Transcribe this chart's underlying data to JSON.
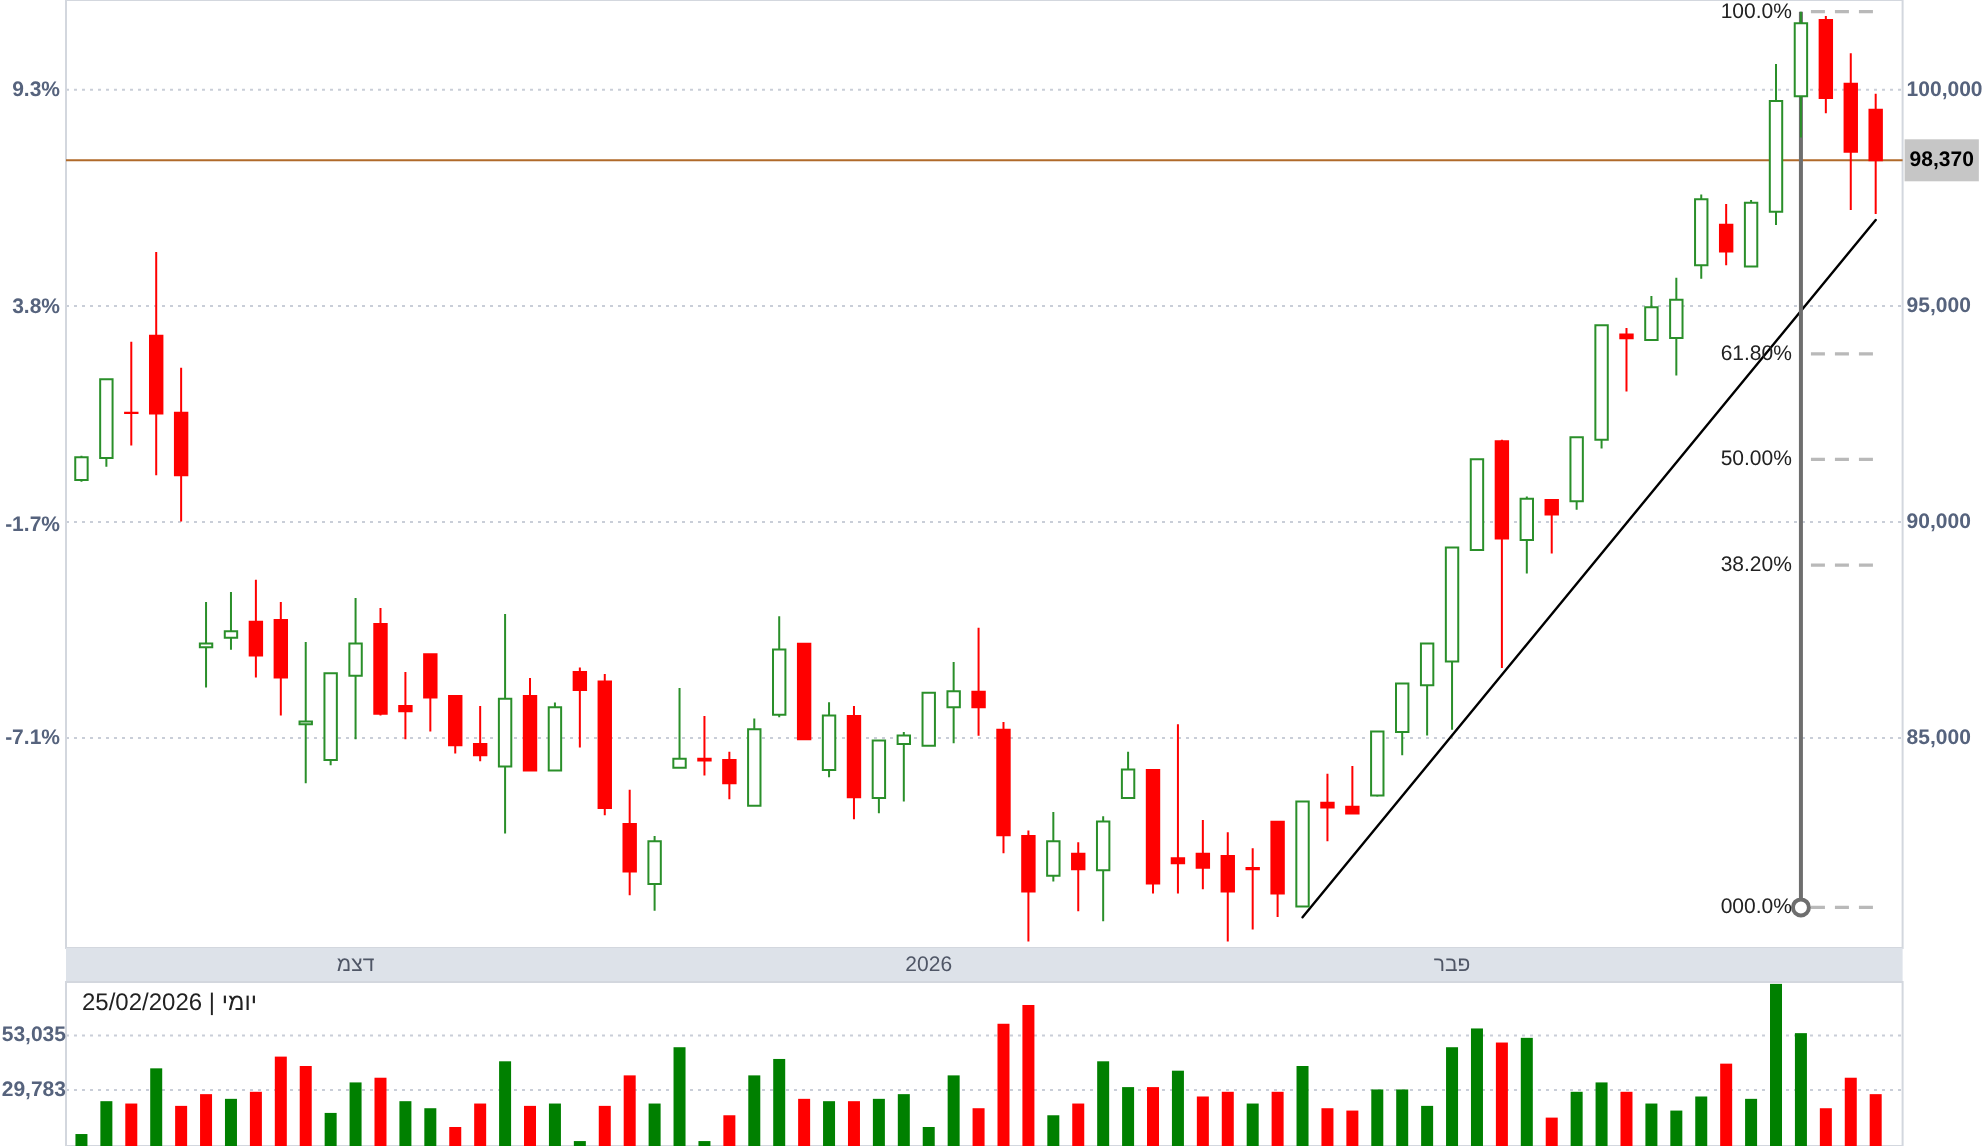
{
  "chart_data": [
    {
      "type": "candlestick",
      "categories": [
        null,
        null,
        null,
        null,
        null,
        null,
        null,
        null,
        null,
        null,
        null,
        "דצמ",
        null,
        null,
        null,
        null,
        null,
        null,
        null,
        null,
        null,
        null,
        null,
        null,
        null,
        null,
        null,
        null,
        null,
        null,
        null,
        null,
        null,
        null,
        "2026",
        null,
        null,
        null,
        null,
        null,
        null,
        null,
        null,
        null,
        null,
        null,
        null,
        null,
        null,
        null,
        null,
        null,
        null,
        null,
        null,
        "פבר",
        null,
        null,
        null,
        null,
        null,
        null,
        null,
        null,
        null,
        null,
        null,
        null,
        null,
        null,
        null,
        null,
        null
      ],
      "ohlc": [
        [
          90970,
          91530,
          90930,
          91500
        ],
        [
          91480,
          93300,
          91280,
          93300
        ],
        [
          92530,
          94170,
          91770,
          92520
        ],
        [
          94310,
          96250,
          91080,
          92510
        ],
        [
          92530,
          93570,
          90010,
          91080
        ],
        [
          87100,
          88150,
          86170,
          87190
        ],
        [
          87320,
          88380,
          87040,
          87470
        ],
        [
          87690,
          88660,
          86400,
          86910
        ],
        [
          87730,
          88150,
          85520,
          86400
        ],
        [
          85320,
          87220,
          83950,
          85380
        ],
        [
          84490,
          86500,
          84370,
          86500
        ],
        [
          86440,
          88240,
          84970,
          87190
        ],
        [
          87640,
          88010,
          85520,
          85560
        ],
        [
          85740,
          86530,
          84970,
          85620
        ],
        [
          86940,
          86940,
          85150,
          85940
        ],
        [
          85970,
          85970,
          84640,
          84830
        ],
        [
          84860,
          85740,
          84460,
          84600
        ],
        [
          84340,
          87870,
          82790,
          85910
        ],
        [
          85970,
          86390,
          84250,
          84250
        ],
        [
          84250,
          85820,
          84250,
          85710
        ],
        [
          86530,
          86630,
          84780,
          86110
        ],
        [
          86310,
          86480,
          83210,
          83380
        ],
        [
          83010,
          83800,
          81360,
          81910
        ],
        [
          81620,
          82730,
          81000,
          82610
        ],
        [
          84310,
          86160,
          84310,
          84520
        ],
        [
          84520,
          85510,
          84130,
          84480
        ],
        [
          84490,
          84680,
          83580,
          83950
        ],
        [
          83430,
          85450,
          83430,
          85200
        ],
        [
          85540,
          87820,
          85480,
          87050
        ],
        [
          87180,
          87180,
          84970,
          84970
        ],
        [
          84260,
          85830,
          84090,
          85520
        ],
        [
          85510,
          85740,
          83120,
          83630
        ],
        [
          83610,
          84940,
          83260,
          84940
        ],
        [
          84860,
          85140,
          83530,
          85060
        ],
        [
          84820,
          86050,
          84820,
          86050
        ],
        [
          85710,
          86760,
          84880,
          86080
        ],
        [
          86070,
          87550,
          85050,
          85710
        ],
        [
          85190,
          85370,
          82330,
          82750
        ],
        [
          82730,
          82860,
          80290,
          81450
        ],
        [
          81810,
          83290,
          81680,
          82610
        ],
        [
          82320,
          82590,
          80990,
          81960
        ],
        [
          81940,
          83190,
          80760,
          83070
        ],
        [
          83610,
          84680,
          83610,
          84270
        ],
        [
          84260,
          84260,
          81400,
          81630
        ],
        [
          82220,
          85320,
          81400,
          82100
        ],
        [
          82320,
          83100,
          81500,
          82000
        ],
        [
          82270,
          82820,
          80290,
          81450
        ],
        [
          81990,
          82450,
          80570,
          81960
        ],
        [
          83060,
          83060,
          80860,
          81400
        ],
        [
          81100,
          83530,
          81080,
          83530
        ],
        [
          83500,
          84170,
          82610,
          83390
        ],
        [
          83410,
          84350,
          83250,
          83250
        ],
        [
          83670,
          85150,
          83640,
          85150
        ],
        [
          85140,
          86260,
          84600,
          86260
        ],
        [
          86220,
          87190,
          85060,
          87190
        ],
        [
          86770,
          89410,
          85190,
          89410
        ],
        [
          89350,
          91450,
          89350,
          91450
        ],
        [
          91870,
          91900,
          86620,
          89620
        ],
        [
          89580,
          90590,
          88810,
          90540
        ],
        [
          90510,
          90510,
          89270,
          90170
        ],
        [
          90480,
          91960,
          90280,
          91960
        ],
        [
          91900,
          94550,
          91700,
          94550
        ],
        [
          94340,
          94490,
          93020,
          94250
        ],
        [
          94210,
          95230,
          94210,
          94970
        ],
        [
          94260,
          95650,
          93390,
          95140
        ],
        [
          95940,
          97580,
          95630,
          97470
        ],
        [
          96880,
          97360,
          95940,
          96260
        ],
        [
          95910,
          97450,
          95910,
          97390
        ],
        [
          97180,
          100600,
          96870,
          99740
        ],
        [
          99850,
          101810,
          98900,
          101540
        ],
        [
          101620,
          101710,
          99460,
          99810
        ],
        [
          100140,
          100850,
          97220,
          98570
        ],
        [
          99540,
          99910,
          97130,
          98370
        ]
      ],
      "colors": [
        "#2a8f2a",
        "#2a8f2a",
        "#ff0000",
        "#ff0000",
        "#ff0000",
        "#2a8f2a",
        "#2a8f2a",
        "#ff0000",
        "#ff0000",
        "#2a8f2a",
        "#2a8f2a",
        "#2a8f2a",
        "#ff0000",
        "#ff0000",
        "#ff0000",
        "#ff0000",
        "#ff0000",
        "#2a8f2a",
        "#ff0000",
        "#2a8f2a",
        "#ff0000",
        "#ff0000",
        "#ff0000",
        "#2a8f2a",
        "#2a8f2a",
        "#ff0000",
        "#ff0000",
        "#2a8f2a",
        "#2a8f2a",
        "#ff0000",
        "#2a8f2a",
        "#ff0000",
        "#2a8f2a",
        "#2a8f2a",
        "#2a8f2a",
        "#2a8f2a",
        "#ff0000",
        "#ff0000",
        "#ff0000",
        "#2a8f2a",
        "#ff0000",
        "#2a8f2a",
        "#2a8f2a",
        "#ff0000",
        "#ff0000",
        "#ff0000",
        "#ff0000",
        "#ff0000",
        "#ff0000",
        "#2a8f2a",
        "#ff0000",
        "#ff0000",
        "#2a8f2a",
        "#2a8f2a",
        "#2a8f2a",
        "#2a8f2a",
        "#2a8f2a",
        "#ff0000",
        "#2a8f2a",
        "#ff0000",
        "#2a8f2a",
        "#2a8f2a",
        "#ff0000",
        "#2a8f2a",
        "#2a8f2a",
        "#2a8f2a",
        "#ff0000",
        "#2a8f2a",
        "#2a8f2a",
        "#2a8f2a",
        "#ff0000",
        "#ff0000",
        "#ff0000"
      ],
      "ylim": [
        80140,
        102080
      ],
      "yticks": [
        {
          "value": 85000,
          "label": "85,000"
        },
        {
          "value": 90000,
          "label": "90,000"
        },
        {
          "value": 95000,
          "label": "95,000"
        },
        {
          "value": 100000,
          "label": "100,000"
        }
      ],
      "y2lim": [
        -12.42,
        11.58
      ],
      "y2ticks": [
        {
          "value": -7.1,
          "label": "-7.1%"
        },
        {
          "value": -1.7,
          "label": "-1.7%"
        },
        {
          "value": 3.8,
          "label": "3.8%"
        },
        {
          "value": 9.3,
          "label": "9.3%"
        }
      ],
      "grid": "y",
      "series": [
        {
          "type": "line",
          "values": [
            null,
            null,
            null,
            null,
            null,
            null,
            null,
            null,
            null,
            null,
            null,
            null,
            null,
            null,
            null,
            null,
            null,
            null,
            null,
            null,
            null,
            null,
            null,
            null,
            null,
            null,
            null,
            null,
            null,
            null,
            null,
            null,
            null,
            null,
            null,
            null,
            null,
            null,
            null,
            null,
            null,
            null,
            null,
            null,
            null,
            null,
            null,
            null,
            null,
            80850,
            null,
            null,
            null,
            null,
            null,
            null,
            null,
            null,
            null,
            null,
            null,
            null,
            null,
            null,
            null,
            null,
            null,
            null,
            null,
            null,
            null,
            null,
            96990
          ],
          "color": "#000000"
        },
        {
          "name": "100.0%",
          "type": "line",
          "values": [
            null,
            null,
            null,
            null,
            null,
            null,
            null,
            null,
            null,
            null,
            null,
            null,
            null,
            null,
            null,
            null,
            null,
            null,
            null,
            null,
            null,
            null,
            null,
            null,
            null,
            null,
            null,
            null,
            null,
            null,
            null,
            null,
            null,
            null,
            null,
            null,
            null,
            null,
            null,
            null,
            null,
            null,
            null,
            null,
            null,
            null,
            null,
            null,
            null,
            null,
            null,
            null,
            null,
            null,
            null,
            null,
            null,
            null,
            null,
            null,
            null,
            null,
            null,
            null,
            null,
            null,
            null,
            null,
            null,
            101810,
            null,
            null,
            101810
          ],
          "color": "#b9b9b9",
          "line_style": "dashed"
        },
        {
          "name": "61.80%",
          "type": "line",
          "values": [
            null,
            null,
            null,
            null,
            null,
            null,
            null,
            null,
            null,
            null,
            null,
            null,
            null,
            null,
            null,
            null,
            null,
            null,
            null,
            null,
            null,
            null,
            null,
            null,
            null,
            null,
            null,
            null,
            null,
            null,
            null,
            null,
            null,
            null,
            null,
            null,
            null,
            null,
            null,
            null,
            null,
            null,
            null,
            null,
            null,
            null,
            null,
            null,
            null,
            null,
            null,
            null,
            null,
            null,
            null,
            null,
            null,
            null,
            null,
            null,
            null,
            null,
            null,
            null,
            null,
            null,
            null,
            null,
            null,
            93890,
            null,
            null,
            93890
          ],
          "color": "#b9b9b9",
          "line_style": "dashed"
        },
        {
          "name": "50.00%",
          "type": "line",
          "values": [
            null,
            null,
            null,
            null,
            null,
            null,
            null,
            null,
            null,
            null,
            null,
            null,
            null,
            null,
            null,
            null,
            null,
            null,
            null,
            null,
            null,
            null,
            null,
            null,
            null,
            null,
            null,
            null,
            null,
            null,
            null,
            null,
            null,
            null,
            null,
            null,
            null,
            null,
            null,
            null,
            null,
            null,
            null,
            null,
            null,
            null,
            null,
            null,
            null,
            null,
            null,
            null,
            null,
            null,
            null,
            null,
            null,
            null,
            null,
            null,
            null,
            null,
            null,
            null,
            null,
            null,
            null,
            null,
            null,
            91450,
            null,
            null,
            91450
          ],
          "color": "#b9b9b9",
          "line_style": "dashed"
        },
        {
          "name": "38.20%",
          "type": "line",
          "values": [
            null,
            null,
            null,
            null,
            null,
            null,
            null,
            null,
            null,
            null,
            null,
            null,
            null,
            null,
            null,
            null,
            null,
            null,
            null,
            null,
            null,
            null,
            null,
            null,
            null,
            null,
            null,
            null,
            null,
            null,
            null,
            null,
            null,
            null,
            null,
            null,
            null,
            null,
            null,
            null,
            null,
            null,
            null,
            null,
            null,
            null,
            null,
            null,
            null,
            null,
            null,
            null,
            null,
            null,
            null,
            null,
            null,
            null,
            null,
            null,
            null,
            null,
            null,
            null,
            null,
            null,
            null,
            null,
            null,
            89000,
            null,
            null,
            89000
          ],
          "color": "#b9b9b9",
          "line_style": "dashed"
        },
        {
          "name": "000.0%",
          "type": "line",
          "values": [
            null,
            null,
            null,
            null,
            null,
            null,
            null,
            null,
            null,
            null,
            null,
            null,
            null,
            null,
            null,
            null,
            null,
            null,
            null,
            null,
            null,
            null,
            null,
            null,
            null,
            null,
            null,
            null,
            null,
            null,
            null,
            null,
            null,
            null,
            null,
            null,
            null,
            null,
            null,
            null,
            null,
            null,
            null,
            null,
            null,
            null,
            null,
            null,
            null,
            null,
            null,
            null,
            null,
            null,
            null,
            null,
            null,
            null,
            null,
            null,
            null,
            null,
            null,
            null,
            null,
            null,
            null,
            null,
            null,
            81080,
            null,
            null,
            81080
          ],
          "color": "#b9b9b9",
          "line_style": "dashed"
        }
      ],
      "ref_lines": [
        {
          "axis": "y",
          "value": 98370,
          "label": "98,370",
          "color": "#b06a2a",
          "line_style": "solid"
        }
      ]
    },
    {
      "type": "bar",
      "categories": [
        null,
        null,
        null,
        null,
        null,
        null,
        null,
        null,
        null,
        null,
        null,
        null,
        null,
        null,
        null,
        null,
        null,
        null,
        null,
        null,
        null,
        null,
        null,
        null,
        null,
        null,
        null,
        null,
        null,
        null,
        null,
        null,
        null,
        null,
        null,
        null,
        null,
        null,
        null,
        null,
        null,
        null,
        null,
        null,
        null,
        null,
        null,
        null,
        null,
        null,
        null,
        null,
        null,
        null,
        null,
        null,
        null,
        null,
        null,
        null,
        null,
        null,
        null,
        null,
        null,
        null,
        null,
        null,
        null,
        null,
        null,
        null,
        null
      ],
      "values": [
        11000,
        25000,
        24000,
        39000,
        23000,
        28000,
        26000,
        29000,
        44000,
        40000,
        20000,
        33000,
        35000,
        25000,
        22000,
        14000,
        24000,
        42000,
        23000,
        24000,
        8000,
        23000,
        36000,
        24000,
        48000,
        8000,
        19000,
        36000,
        43000,
        26000,
        25000,
        25000,
        26000,
        28000,
        14000,
        36000,
        22000,
        58000,
        66000,
        19000,
        24000,
        42000,
        31000,
        31000,
        38000,
        27000,
        29000,
        24000,
        29000,
        40000,
        22000,
        21000,
        30000,
        30000,
        23000,
        48000,
        56000,
        50000,
        52000,
        18000,
        29000,
        33000,
        29000,
        24000,
        21000,
        27000,
        41000,
        26000,
        75000,
        54000,
        22000,
        35000,
        28000
      ],
      "colors": [
        "#008000",
        "#008000",
        "#ff0000",
        "#008000",
        "#ff0000",
        "#ff0000",
        "#008000",
        "#ff0000",
        "#ff0000",
        "#ff0000",
        "#008000",
        "#008000",
        "#ff0000",
        "#008000",
        "#008000",
        "#ff0000",
        "#ff0000",
        "#008000",
        "#ff0000",
        "#008000",
        "#008000",
        "#ff0000",
        "#ff0000",
        "#008000",
        "#008000",
        "#008000",
        "#ff0000",
        "#008000",
        "#008000",
        "#ff0000",
        "#008000",
        "#ff0000",
        "#008000",
        "#008000",
        "#008000",
        "#008000",
        "#ff0000",
        "#ff0000",
        "#ff0000",
        "#008000",
        "#ff0000",
        "#008000",
        "#008000",
        "#ff0000",
        "#008000",
        "#ff0000",
        "#ff0000",
        "#008000",
        "#ff0000",
        "#008000",
        "#ff0000",
        "#ff0000",
        "#008000",
        "#008000",
        "#008000",
        "#008000",
        "#008000",
        "#ff0000",
        "#008000",
        "#ff0000",
        "#008000",
        "#008000",
        "#ff0000",
        "#008000",
        "#008000",
        "#008000",
        "#ff0000",
        "#008000",
        "#008000",
        "#008000",
        "#ff0000",
        "#ff0000",
        "#ff0000"
      ],
      "ylim": [
        5900,
        75800
      ],
      "yticks": [
        {
          "value": 29783,
          "label": "29,783"
        },
        {
          "value": 53035,
          "label": "53,035"
        }
      ],
      "grid": "y",
      "tick_labels": "y",
      "annotations": [
        "יומי | 25/02/2026"
      ]
    }
  ]
}
